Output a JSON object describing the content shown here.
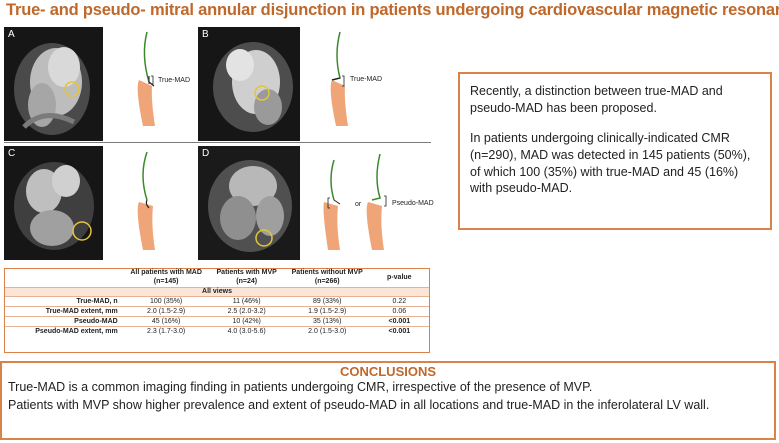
{
  "title": "True- and pseudo- mitral annular disjunction in patients undergoing cardiovascular magnetic resonance",
  "panels": [
    {
      "label": "A",
      "annotation": "True-MAD"
    },
    {
      "label": "B",
      "annotation": "True-MAD"
    },
    {
      "label": "C",
      "annotation": ""
    },
    {
      "label": "D",
      "annotation": "Pseudo-MAD",
      "connector": "or"
    }
  ],
  "summary": {
    "p1": "Recently, a distinction between true-MAD and pseudo-MAD has been proposed.",
    "p2": "In patients undergoing clinically-indicated CMR (n=290), MAD was detected in 145 patients (50%), of which 100 (35%) with true-MAD and 45 (16%) with pseudo-MAD."
  },
  "table": {
    "headers": [
      {
        "line1": "",
        "line2": ""
      },
      {
        "line1": "All patients with MAD",
        "line2": "(n=145)"
      },
      {
        "line1": "Patients with MVP",
        "line2": "(n=24)"
      },
      {
        "line1": "Patients without MVP",
        "line2": "(n=266)"
      },
      {
        "line1": "p-value",
        "line2": ""
      }
    ],
    "band": "All views",
    "rows": [
      {
        "label": "True-MAD, n",
        "c1": "100 (35%)",
        "c2": "11 (46%)",
        "c3": "89 (33%)",
        "p": "0.22"
      },
      {
        "label": "True-MAD extent, mm",
        "c1": "2.0 (1.5-2.9)",
        "c2": "2.5 (2.0-3.2)",
        "c3": "1.9 (1.5-2.9)",
        "p": "0.06"
      },
      {
        "label": "Pseudo-MAD",
        "c1": "45 (16%)",
        "c2": "10 (42%)",
        "c3": "35 (13%)",
        "p": "<0.001"
      },
      {
        "label": "Pseudo-MAD extent, mm",
        "c1": "2.3 (1.7-3.0)",
        "c2": "4.0 (3.0-5.6)",
        "c3": "2.0 (1.5-3.0)",
        "p": "<0.001"
      }
    ]
  },
  "conclusions": {
    "heading": "CONCLUSIONS",
    "line1": "True-MAD is a common imaging finding in patients undergoing CMR, irrespective of the presence of MVP.",
    "line2": "Patients with MVP show higher prevalence and extent of pseudo-MAD in all locations and true-MAD in the inferolateral LV wall."
  },
  "colors": {
    "accent": "#c0672a",
    "border": "#d9824a",
    "band": "#fbe5d6",
    "myocardium": "#f0a578",
    "leaflet": "#3a8a2a",
    "highlight_circle": "#e3c53a"
  }
}
